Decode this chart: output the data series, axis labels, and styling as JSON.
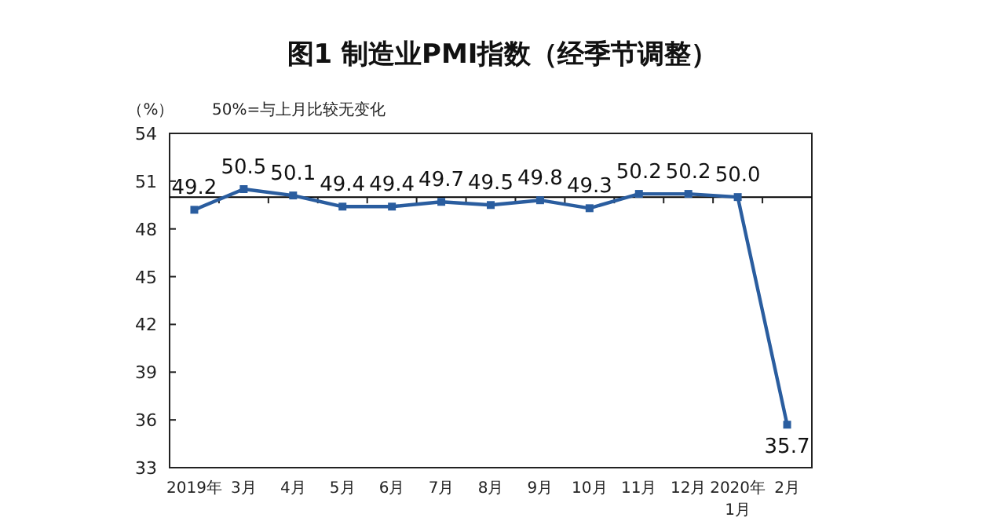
{
  "chart_data": {
    "type": "line",
    "title": "图1 制造业PMI指数（经季节调整）",
    "ylabel": "（%）",
    "annotations": [
      "50%=与上月比较无变化"
    ],
    "categories": [
      "2019年",
      "3月",
      "4月",
      "5月",
      "6月",
      "7月",
      "8月",
      "9月",
      "10月",
      "11月",
      "12月",
      "2020年\n1月",
      "2月"
    ],
    "series": [
      {
        "color": "#2a5d9f",
        "values": [
          49.2,
          50.5,
          50.1,
          49.4,
          49.4,
          49.7,
          49.5,
          49.8,
          49.3,
          50.2,
          50.2,
          50.0,
          35.7
        ]
      }
    ],
    "ylim": [
      33,
      54
    ],
    "yticks": [
      33,
      36,
      39,
      42,
      45,
      48,
      51,
      54
    ],
    "ref_lines": [
      {
        "axis": "y",
        "value": 50,
        "color": "#000000"
      }
    ],
    "value_labels": [
      "49.2",
      "50.5",
      "50.1",
      "49.4",
      "49.4",
      "49.7",
      "49.5",
      "49.8",
      "49.3",
      "50.2",
      "50.2",
      "50.0",
      "35.7"
    ],
    "marker": "square",
    "line_style": "solid",
    "grid": false
  }
}
